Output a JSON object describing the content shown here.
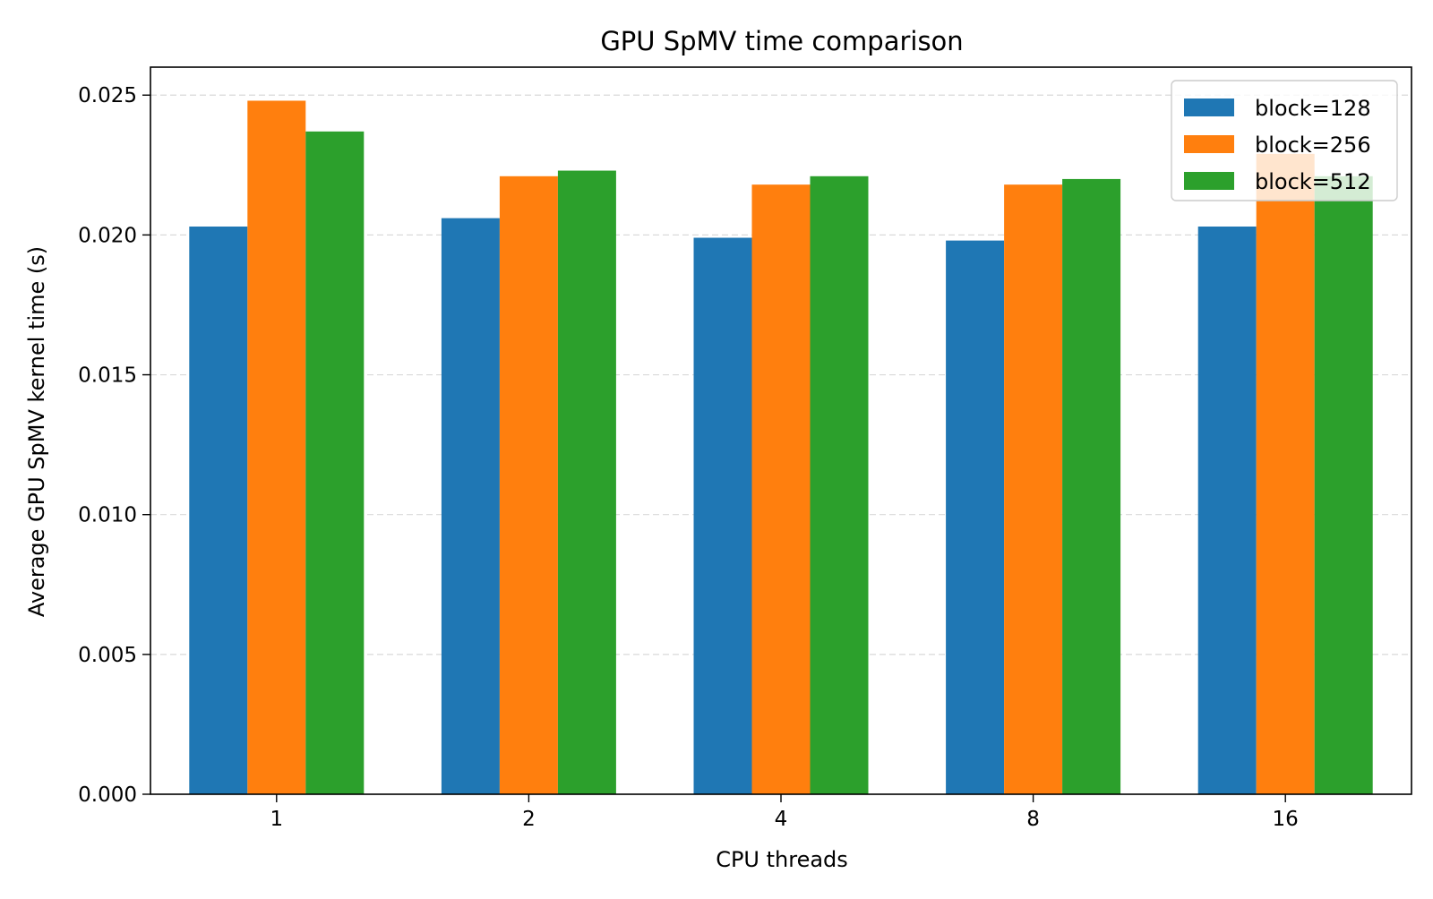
{
  "chart_data": {
    "type": "bar",
    "title": "GPU SpMV time comparison",
    "xlabel": "CPU threads",
    "ylabel": "Average GPU SpMV kernel time (s)",
    "categories": [
      "1",
      "2",
      "4",
      "8",
      "16"
    ],
    "series": [
      {
        "name": "block=128",
        "color": "#1f77b4",
        "values": [
          0.0203,
          0.0206,
          0.0199,
          0.0198,
          0.0203
        ]
      },
      {
        "name": "block=256",
        "color": "#ff7f0e",
        "values": [
          0.0248,
          0.0221,
          0.0218,
          0.0218,
          0.0229
        ]
      },
      {
        "name": "block=512",
        "color": "#2ca02c",
        "values": [
          0.0237,
          0.0223,
          0.0221,
          0.022,
          0.0221
        ]
      }
    ],
    "ylim": [
      0,
      0.026
    ],
    "yticks": [
      "0.000",
      "0.005",
      "0.010",
      "0.015",
      "0.020",
      "0.025"
    ],
    "ytick_values": [
      0,
      0.005,
      0.01,
      0.015,
      0.02,
      0.025
    ],
    "grid": "y-dashed",
    "legend_position": "top-right"
  }
}
